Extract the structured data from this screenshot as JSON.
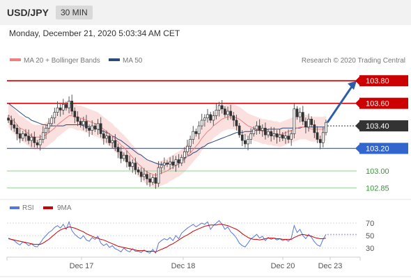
{
  "header": {
    "pair": "USD/JPY",
    "timeframe": "30 MIN"
  },
  "datetime": "Monday, December 21, 2020 5:03:34 AM CET",
  "legend": {
    "ma20": "MA 20 + Bollinger Bands",
    "ma50": "MA 50",
    "credit": "Research © 2020 Trading Central"
  },
  "rsi_legend": {
    "rsi": "RSI",
    "ma9": "9MA"
  },
  "colors": {
    "resistance": "#cc0000",
    "support": "#3366cc",
    "target_green": "#339933",
    "current": "#333333",
    "ma20": "#f08080",
    "ma50": "#2c4a7c",
    "band": "#fadada",
    "arrow": "#2e5da8",
    "rsi": "#5577dd"
  },
  "chart_data": {
    "type": "candlestick",
    "price_axis_range": [
      102.79,
      103.9
    ],
    "x_tick_labels": [
      "Dec 17",
      "Dec 18",
      "Dec 20",
      "Dec 23"
    ],
    "levels": [
      {
        "value": 103.8,
        "label": "103.80",
        "kind": "resistance"
      },
      {
        "value": 103.6,
        "label": "103.60",
        "kind": "resistance"
      },
      {
        "value": 103.4,
        "label": "103.40",
        "kind": "current"
      },
      {
        "value": 103.2,
        "label": "103.20",
        "kind": "support"
      },
      {
        "value": 103.0,
        "label": "103.00",
        "kind": "target"
      },
      {
        "value": 102.85,
        "label": "102.85",
        "kind": "target"
      }
    ],
    "close_series": [
      103.45,
      103.41,
      103.38,
      103.33,
      103.29,
      103.33,
      103.31,
      103.27,
      103.3,
      103.25,
      103.23,
      103.28,
      103.34,
      103.38,
      103.42,
      103.47,
      103.52,
      103.56,
      103.54,
      103.59,
      103.56,
      103.62,
      103.53,
      103.48,
      103.44,
      103.41,
      103.44,
      103.38,
      103.36,
      103.4,
      103.37,
      103.42,
      103.33,
      103.29,
      103.31,
      103.25,
      103.27,
      103.21,
      103.17,
      103.11,
      103.14,
      103.08,
      103.04,
      103.07,
      103.01,
      102.99,
      102.95,
      102.97,
      102.93,
      102.9,
      102.94,
      102.89,
      103.03,
      103.05,
      103.07,
      103.06,
      103.08,
      103.05,
      103.1,
      103.07,
      103.12,
      103.17,
      103.22,
      103.28,
      103.35,
      103.33,
      103.4,
      103.45,
      103.47,
      103.5,
      103.45,
      103.49,
      103.54,
      103.58,
      103.55,
      103.5,
      103.53,
      103.49,
      103.45,
      103.4,
      103.32,
      103.27,
      103.24,
      103.28,
      103.33,
      103.37,
      103.4,
      103.36,
      103.38,
      103.32,
      103.35,
      103.31,
      103.33,
      103.3,
      103.32,
      103.29,
      103.31,
      103.28,
      103.33,
      103.55,
      103.48,
      103.52,
      103.44,
      103.39,
      103.46,
      103.41,
      103.34,
      103.28,
      103.25,
      103.34,
      103.43
    ],
    "ma20": [
      103.5,
      103.47,
      103.44,
      103.41,
      103.38,
      103.37,
      103.35,
      103.33,
      103.31,
      103.3,
      103.3,
      103.3,
      103.31,
      103.32,
      103.34,
      103.36,
      103.38,
      103.41,
      103.43,
      103.45,
      103.47,
      103.49,
      103.49,
      103.48,
      103.47,
      103.47,
      103.46,
      103.45,
      103.44,
      103.43,
      103.42,
      103.41,
      103.39,
      103.37,
      103.35,
      103.33,
      103.31,
      103.28,
      103.26,
      103.23,
      103.21,
      103.18,
      103.15,
      103.12,
      103.09,
      103.06,
      103.04,
      103.01,
      102.99,
      102.98,
      102.97,
      102.96,
      102.97,
      102.98,
      102.99,
      103.0,
      103.02,
      103.03,
      103.05,
      103.06,
      103.08,
      103.1,
      103.13,
      103.16,
      103.19,
      103.22,
      103.25,
      103.29,
      103.32,
      103.35,
      103.37,
      103.4,
      103.42,
      103.44,
      103.46,
      103.47,
      103.48,
      103.48,
      103.48,
      103.47,
      103.46,
      103.44,
      103.42,
      103.4,
      103.39,
      103.38,
      103.37,
      103.36,
      103.35,
      103.35,
      103.34,
      103.34,
      103.33,
      103.33,
      103.32,
      103.33,
      103.34,
      103.35,
      103.36,
      103.37,
      103.38,
      103.39,
      103.39,
      103.39,
      103.38,
      103.37,
      103.37,
      103.37,
      103.37,
      103.37,
      103.38
    ],
    "ma50": [
      103.6,
      103.58,
      103.56,
      103.54,
      103.52,
      103.5,
      103.48,
      103.47,
      103.45,
      103.44,
      103.43,
      103.42,
      103.41,
      103.41,
      103.4,
      103.4,
      103.4,
      103.4,
      103.4,
      103.4,
      103.41,
      103.41,
      103.41,
      103.41,
      103.41,
      103.41,
      103.4,
      103.4,
      103.39,
      103.39,
      103.38,
      103.37,
      103.36,
      103.35,
      103.34,
      103.33,
      103.31,
      103.3,
      103.28,
      103.27,
      103.25,
      103.23,
      103.21,
      103.19,
      103.17,
      103.15,
      103.14,
      103.12,
      103.1,
      103.09,
      103.08,
      103.07,
      103.06,
      103.06,
      103.06,
      103.06,
      103.07,
      103.07,
      103.08,
      103.09,
      103.1,
      103.11,
      103.13,
      103.14,
      103.16,
      103.17,
      103.19,
      103.21,
      103.22,
      103.24,
      103.25,
      103.26,
      103.27,
      103.28,
      103.29,
      103.3,
      103.31,
      103.32,
      103.33,
      103.34,
      103.34,
      103.34,
      103.35,
      103.35,
      103.35,
      103.36,
      103.36,
      103.36,
      103.36,
      103.36,
      103.37,
      103.37,
      103.37,
      103.37,
      103.37,
      103.38,
      103.38,
      103.38,
      103.38,
      103.38,
      103.38,
      103.38,
      103.39,
      103.39,
      103.39,
      103.39,
      103.39,
      103.39,
      103.39,
      103.39,
      103.39
    ],
    "rsi": {
      "axis_range": [
        20,
        80
      ],
      "ticks": [
        70,
        50,
        30
      ],
      "rsi": [
        46,
        44,
        42,
        38,
        35,
        40,
        38,
        34,
        37,
        33,
        32,
        38,
        45,
        50,
        55,
        58,
        63,
        66,
        62,
        68,
        60,
        72,
        58,
        52,
        48,
        45,
        50,
        43,
        41,
        47,
        44,
        49,
        38,
        34,
        37,
        31,
        34,
        29,
        27,
        24,
        30,
        26,
        24,
        29,
        25,
        25,
        23,
        27,
        24,
        22,
        28,
        22,
        38,
        42,
        45,
        43,
        47,
        42,
        50,
        45,
        54,
        58,
        62,
        65,
        68,
        64,
        67,
        70,
        68,
        72,
        60,
        66,
        70,
        74,
        68,
        60,
        64,
        56,
        52,
        46,
        38,
        34,
        32,
        38,
        45,
        48,
        52,
        46,
        49,
        42,
        47,
        44,
        46,
        43,
        45,
        42,
        44,
        41,
        46,
        66,
        55,
        60,
        50,
        45,
        52,
        47,
        40,
        35,
        33,
        44,
        52
      ],
      "ma9": [
        45,
        44,
        43,
        42,
        41,
        40,
        39,
        38,
        37,
        36,
        36,
        36,
        38,
        41,
        44,
        48,
        52,
        56,
        59,
        61,
        62,
        64,
        63,
        62,
        60,
        58,
        56,
        53,
        51,
        49,
        47,
        46,
        44,
        43,
        41,
        39,
        37,
        35,
        33,
        32,
        31,
        30,
        29,
        28,
        27,
        26,
        26,
        26,
        25,
        25,
        25,
        24,
        26,
        28,
        30,
        32,
        35,
        37,
        40,
        43,
        46,
        49,
        51,
        54,
        57,
        59,
        61,
        63,
        65,
        66,
        67,
        67,
        67,
        68,
        68,
        67,
        66,
        64,
        62,
        60,
        57,
        53,
        50,
        47,
        45,
        44,
        44,
        43,
        44,
        45,
        46,
        46,
        46,
        45,
        45,
        44,
        44,
        44,
        44,
        47,
        49,
        51,
        52,
        51,
        50,
        49,
        47,
        46,
        45,
        45,
        46
      ],
      "projection": [
        52,
        52,
        52,
        52
      ]
    }
  }
}
